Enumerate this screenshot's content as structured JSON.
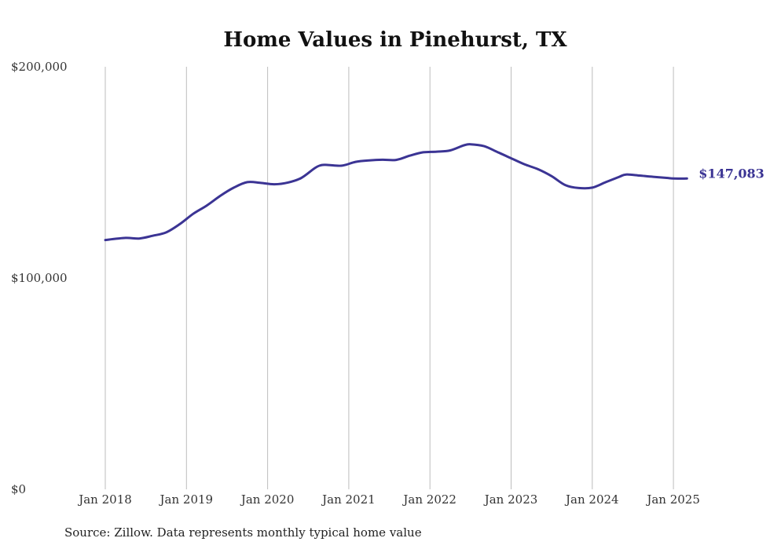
{
  "chart_data": {
    "type": "line",
    "title": "Home Values in Pinehurst, TX",
    "source": "Source: Zillow. Data represents monthly typical home value",
    "xlabel": "",
    "ylabel": "",
    "ylim": [
      0,
      200000
    ],
    "yticks": [
      {
        "value": 0,
        "label": "$0"
      },
      {
        "value": 100000,
        "label": "$100,000"
      },
      {
        "value": 200000,
        "label": "$200,000"
      }
    ],
    "xticks": [
      {
        "value": "2018-01",
        "label": "Jan 2018"
      },
      {
        "value": "2019-01",
        "label": "Jan 2019"
      },
      {
        "value": "2020-01",
        "label": "Jan 2020"
      },
      {
        "value": "2021-01",
        "label": "Jan 2021"
      },
      {
        "value": "2022-01",
        "label": "Jan 2022"
      },
      {
        "value": "2023-01",
        "label": "Jan 2023"
      },
      {
        "value": "2024-01",
        "label": "Jan 2024"
      },
      {
        "value": "2025-01",
        "label": "Jan 2025"
      }
    ],
    "grid": "vertical",
    "line_color": "#3b3494",
    "end_label": "$147,083",
    "series": [
      {
        "x": [
          "2018-01",
          "2018-04",
          "2018-06",
          "2018-08",
          "2018-10",
          "2018-12",
          "2019-02",
          "2019-04",
          "2019-06",
          "2019-08",
          "2019-10",
          "2019-12",
          "2020-02",
          "2020-04",
          "2020-06",
          "2020-08",
          "2020-09",
          "2020-10",
          "2020-12",
          "2021-02",
          "2021-04",
          "2021-06",
          "2021-08",
          "2021-10",
          "2021-12",
          "2022-02",
          "2022-04",
          "2022-06",
          "2022-07",
          "2022-09",
          "2022-11",
          "2023-01",
          "2023-03",
          "2023-05",
          "2023-07",
          "2023-09",
          "2023-11",
          "2024-01",
          "2024-03",
          "2024-05",
          "2024-06",
          "2024-08",
          "2024-10",
          "2024-12",
          "2025-01",
          "2025-03"
        ],
        "values": [
          118000,
          119000,
          118700,
          120000,
          121600,
          125500,
          130400,
          134300,
          138900,
          142800,
          145400,
          145000,
          144400,
          145200,
          147400,
          152100,
          153500,
          153500,
          153200,
          155000,
          155700,
          156000,
          155900,
          157900,
          159500,
          159800,
          160400,
          162800,
          163300,
          162400,
          159600,
          156700,
          153800,
          151500,
          148200,
          144000,
          142600,
          142800,
          145400,
          147900,
          149000,
          148500,
          147900,
          147400,
          147100,
          147083
        ]
      }
    ]
  }
}
